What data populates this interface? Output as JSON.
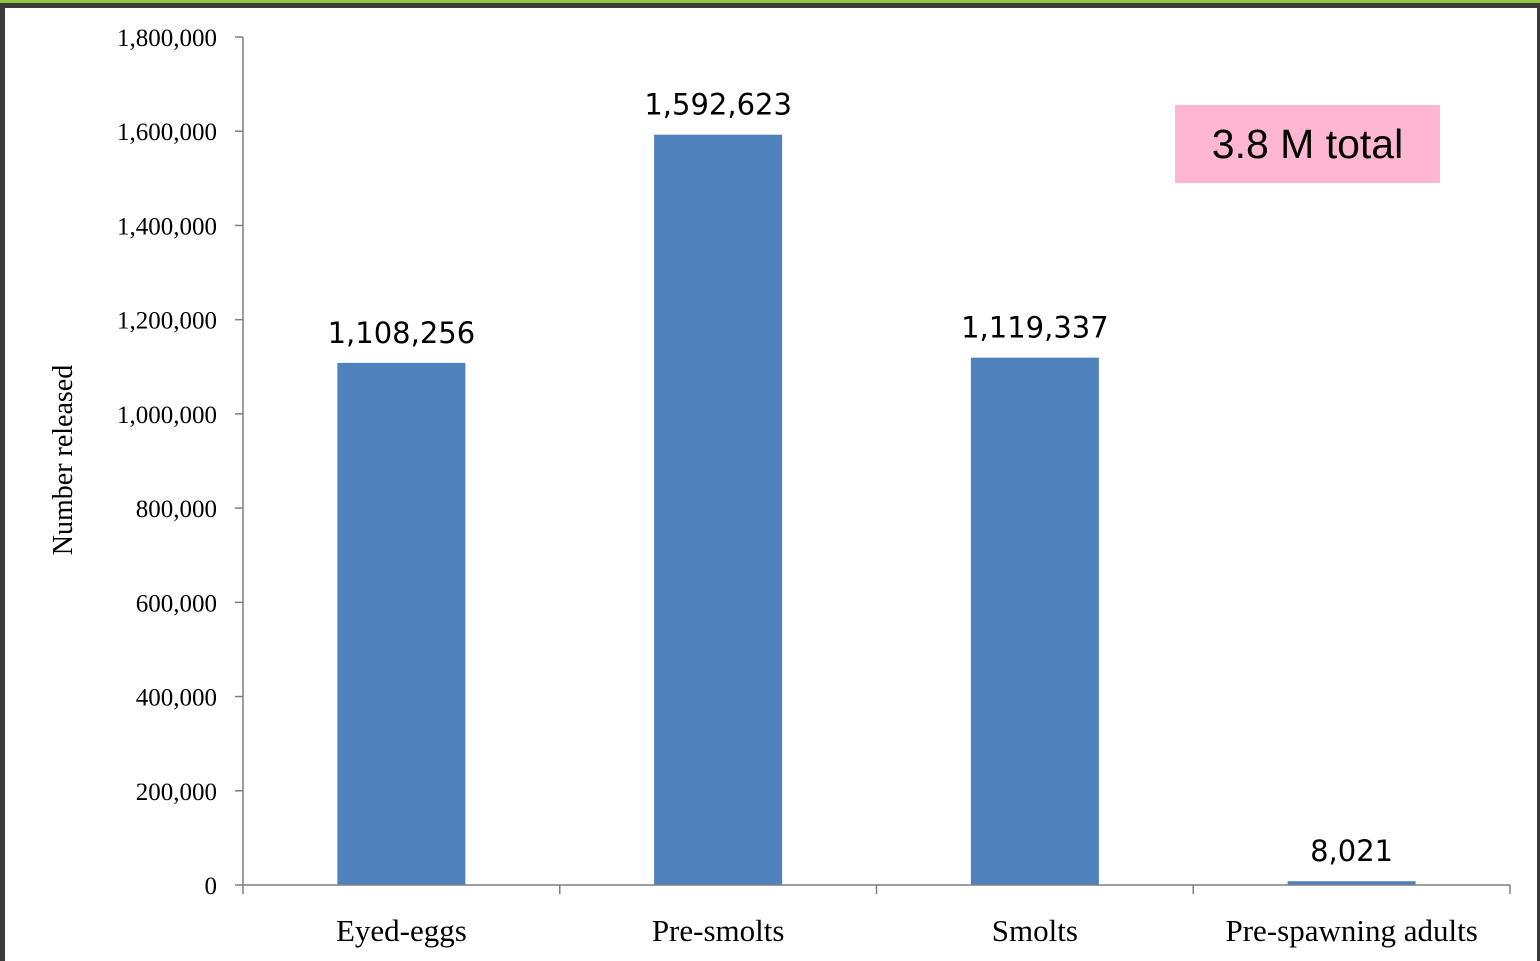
{
  "chart_data": {
    "type": "bar",
    "categories": [
      "Eyed-eggs",
      "Pre-smolts",
      "Smolts",
      "Pre-spawning adults"
    ],
    "values": [
      1108256,
      1592623,
      1119337,
      8021
    ],
    "data_labels": [
      "1,108,256",
      "1,592,623",
      "1,119,337",
      "8,021"
    ],
    "title": "",
    "xlabel": "",
    "ylabel": "Number released",
    "ylim": [
      0,
      1800000
    ],
    "yticks": [
      0,
      200000,
      400000,
      600000,
      800000,
      1000000,
      1200000,
      1400000,
      1600000,
      1800000
    ],
    "ytick_labels": [
      "0",
      "200,000",
      "400,000",
      "600,000",
      "800,000",
      "1,000,000",
      "1,200,000",
      "1,400,000",
      "1,600,000",
      "1,800,000"
    ],
    "grid": false,
    "legend": "none",
    "bar_color": "#4f81bd",
    "annotation": {
      "text": "3.8 M total",
      "color": "#ffb6d3"
    }
  }
}
